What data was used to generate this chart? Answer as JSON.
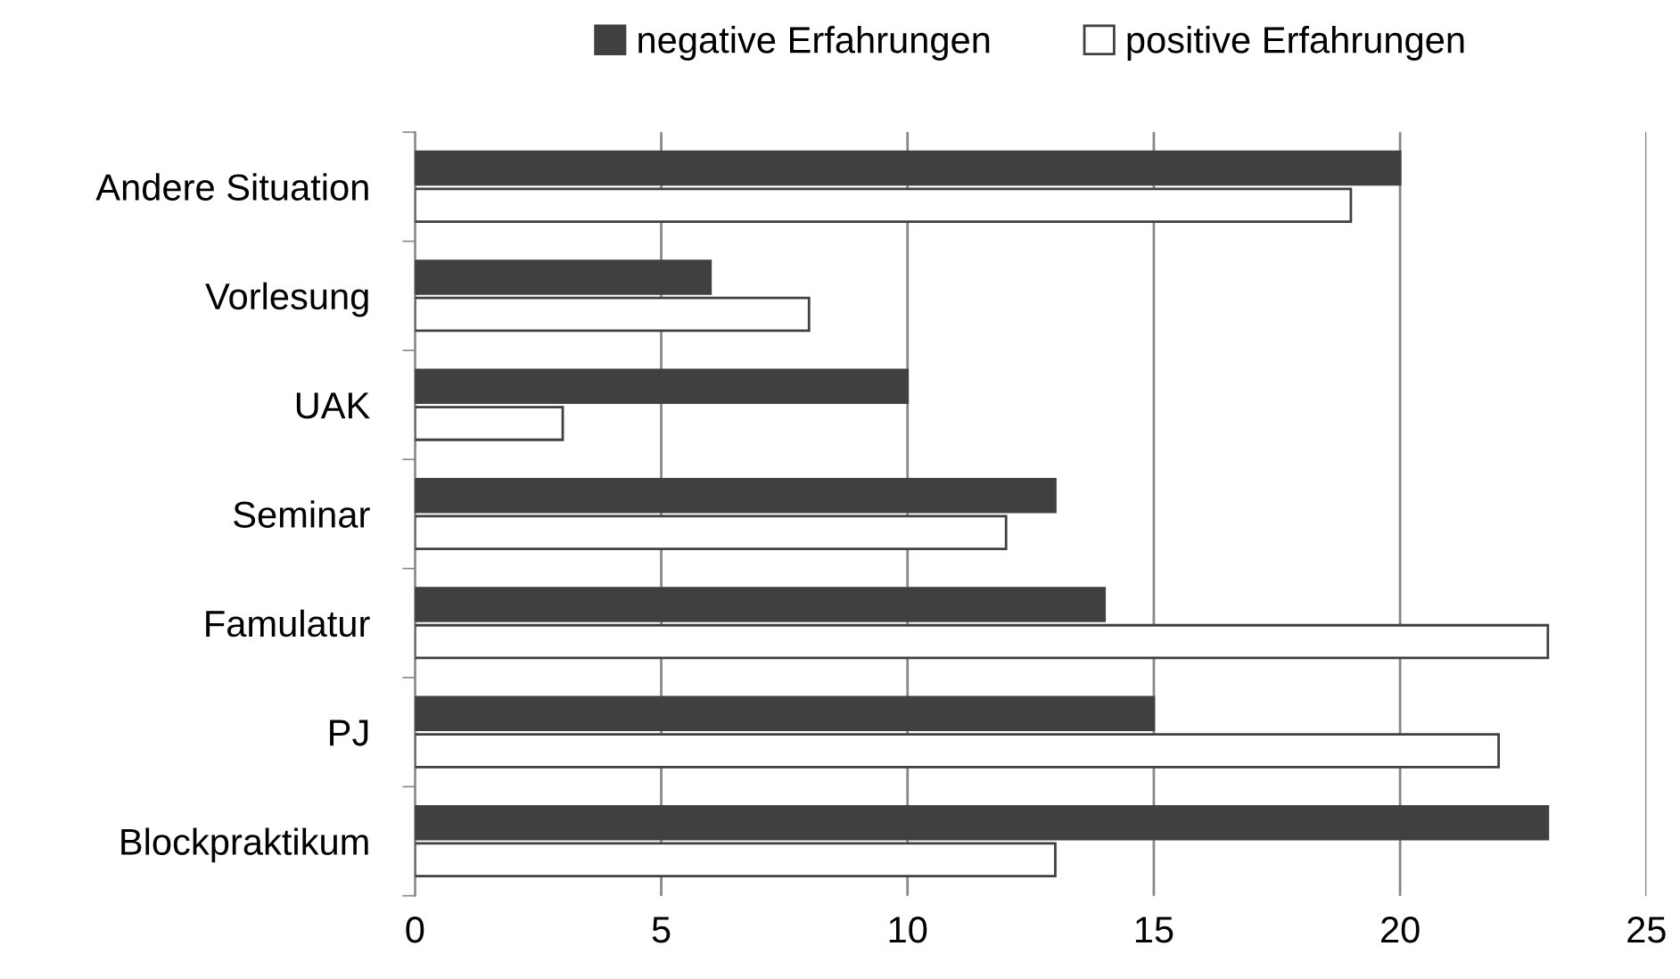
{
  "chart_data": {
    "type": "bar",
    "orientation": "horizontal",
    "categories": [
      "Andere Situation",
      "Vorlesung",
      "UAK",
      "Seminar",
      "Famulatur",
      "PJ",
      "Blockpraktikum"
    ],
    "series": [
      {
        "name": "negative Erfahrungen",
        "color": "#404040",
        "values": [
          20,
          6,
          10,
          13,
          14,
          15,
          23
        ]
      },
      {
        "name": "positive Erfahrungen",
        "color": "#ffffff",
        "values": [
          19,
          8,
          3,
          12,
          23,
          22,
          13
        ]
      }
    ],
    "xlim": [
      0,
      25
    ],
    "xticks": [
      0,
      5,
      10,
      15,
      20,
      25
    ],
    "grid": "x",
    "legend": "top"
  }
}
